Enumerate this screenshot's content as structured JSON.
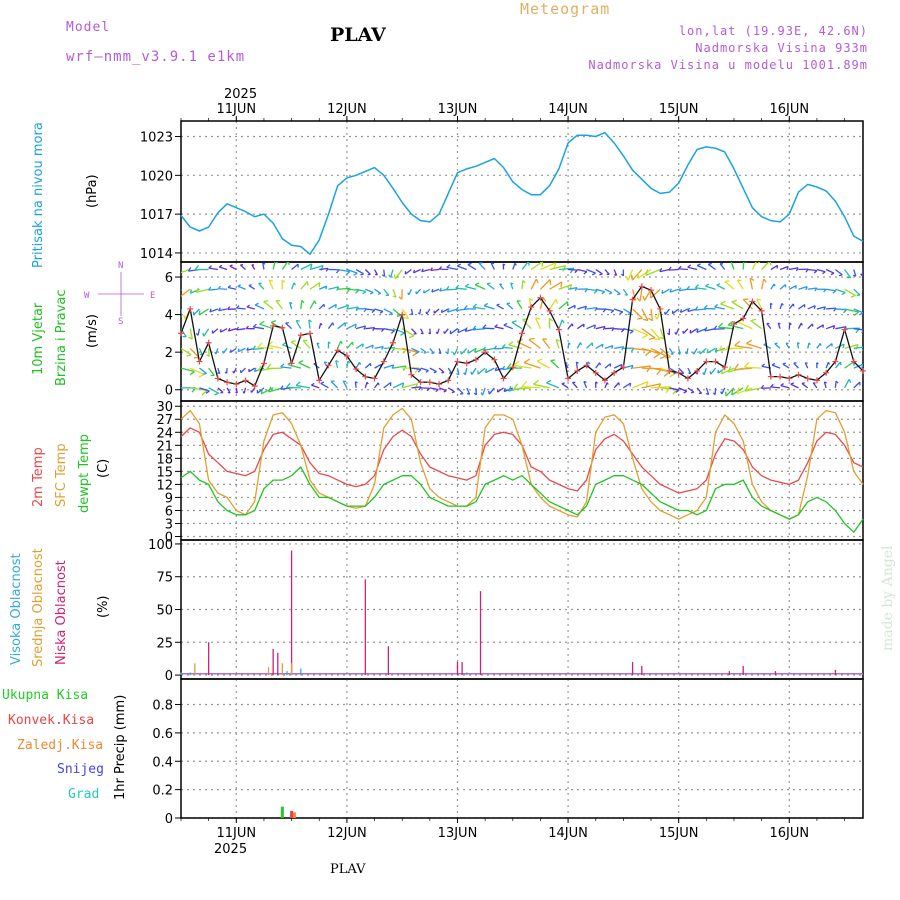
{
  "header": {
    "model_label": "Model",
    "model_name": "wrf—nmm_v3.9.1  e1km",
    "station": "PLAV",
    "product": "Meteogram",
    "lonlat": "lon,lat (19.93E, 42.6N)",
    "elevation": "Nadmorska Visina 933m",
    "model_elevation": "Nadmorska Visina u modelu 1001.89m",
    "footer_station": "PLAV",
    "watermark": "made by Angel"
  },
  "colors": {
    "pressure": "#1aa3e0",
    "wind_label": "#1fbf1f",
    "temp2m": "#e84a4a",
    "sfc": "#e0a030",
    "dewpt": "#22c422",
    "cloud_high": "#33aadd",
    "cloud_mid": "#e0a030",
    "cloud_low": "#cc2277",
    "rain_total": "#22cc22",
    "rain_conv": "#e84444",
    "rain_frozen": "#ee8833",
    "snow": "#4444dd",
    "hail": "#22ccbb"
  },
  "time_axis": {
    "year": "2025",
    "days": [
      "11JUN",
      "12JUN",
      "13JUN",
      "14JUN",
      "15JUN",
      "16JUN"
    ]
  },
  "panels": {
    "pressure": {
      "title": "Pritisak na nivou mora",
      "unit": "(hPa)",
      "ticks": [
        "1014",
        "1017",
        "1020",
        "1023"
      ]
    },
    "wind": {
      "title1": "10m Vjetar",
      "title2": "Brzina i Pravac",
      "unit": "(m/s)",
      "ticks": [
        "0",
        "2",
        "4",
        "6"
      ],
      "compass_n": "N",
      "compass_s": "S",
      "compass_e": "E",
      "compass_w": "W"
    },
    "temp": {
      "title_2m": "2m Temp",
      "title_sfc": "SFC Temp",
      "title_dew": "dewpt Temp",
      "unit": "(C)",
      "ticks": [
        "0",
        "3",
        "6",
        "9",
        "12",
        "15",
        "18",
        "21",
        "24",
        "27",
        "30"
      ]
    },
    "cloud": {
      "title_high": "Visoka Oblacnost",
      "title_mid": "Srednja Oblacnost",
      "title_low": "Niska Oblacnost",
      "unit": "(%)",
      "ticks": [
        "0",
        "25",
        "50",
        "75",
        "100"
      ]
    },
    "precip": {
      "title": "1hr Precip (mm)",
      "ticks": [
        "0",
        "0.2",
        "0.4",
        "0.6",
        "0.8"
      ],
      "legend": [
        "Ukupna Kisa",
        "Konvek.Kisa",
        "Zaledj.Kisa",
        "Snijeg",
        "Grad"
      ]
    }
  },
  "chart_data": [
    {
      "type": "line",
      "title": "Pritisak na nivou mora",
      "ylabel": "(hPa)",
      "ylim": [
        1013.3,
        1024.2
      ],
      "series": [
        {
          "name": "Pritisak na nivou mora",
          "x": [
            0,
            2,
            4,
            6,
            8,
            10,
            12,
            14,
            16,
            18,
            20,
            22,
            24,
            26,
            28,
            30,
            32,
            34,
            36,
            38,
            40,
            42,
            44,
            46,
            48,
            50,
            52,
            54,
            56,
            58,
            60,
            62,
            64,
            66,
            68,
            70,
            72,
            74,
            76,
            78,
            80,
            82,
            84,
            86,
            88,
            90,
            92,
            94,
            96,
            98,
            100,
            102,
            104,
            106,
            108,
            110,
            112,
            114,
            116,
            118,
            120,
            122,
            124,
            126,
            128,
            130,
            132,
            134,
            136,
            138,
            140,
            142,
            144,
            146,
            148
          ],
          "y": [
            1016.9,
            1016.0,
            1015.7,
            1016.0,
            1017.1,
            1017.8,
            1017.5,
            1017.2,
            1016.8,
            1017.0,
            1016.3,
            1015.1,
            1014.6,
            1014.5,
            1013.9,
            1015.0,
            1017.0,
            1019.2,
            1019.8,
            1020.0,
            1020.3,
            1020.6,
            1020.0,
            1019.0,
            1017.9,
            1017.0,
            1016.5,
            1016.4,
            1017.0,
            1018.6,
            1020.2,
            1020.5,
            1020.7,
            1021.0,
            1021.3,
            1020.6,
            1019.5,
            1018.9,
            1018.5,
            1018.5,
            1019.2,
            1020.5,
            1022.5,
            1023.1,
            1023.1,
            1023.0,
            1023.3,
            1022.5,
            1021.5,
            1020.4,
            1019.7,
            1019.0,
            1018.6,
            1018.7,
            1019.4,
            1020.8,
            1022.0,
            1022.2,
            1022.1,
            1021.8,
            1020.5,
            1019.0,
            1017.5,
            1016.8,
            1016.5,
            1016.4,
            1017.0,
            1018.7,
            1019.3,
            1019.1,
            1018.8,
            1018.0,
            1016.8,
            1015.3,
            1014.9
          ]
        }
      ]
    },
    {
      "type": "line",
      "title": "10m Vjetar Brzina i Pravac",
      "ylabel": "(m/s)",
      "ylim": [
        -0.6,
        6.8
      ],
      "series": [
        {
          "name": "10m Vjetar",
          "x": [
            0,
            2,
            4,
            6,
            8,
            10,
            12,
            14,
            16,
            18,
            20,
            22,
            24,
            26,
            28,
            30,
            32,
            34,
            36,
            38,
            40,
            42,
            44,
            46,
            48,
            50,
            52,
            54,
            56,
            58,
            60,
            62,
            64,
            66,
            68,
            70,
            72,
            74,
            76,
            78,
            80,
            82,
            84,
            86,
            88,
            90,
            92,
            94,
            96,
            98,
            100,
            102,
            104,
            106,
            108,
            110,
            112,
            114,
            116,
            118,
            120,
            122,
            124,
            126,
            128,
            130,
            132,
            134,
            136,
            138,
            140,
            142,
            144,
            146,
            148
          ],
          "y": [
            3.0,
            4.3,
            1.5,
            2.5,
            0.6,
            0.4,
            0.3,
            0.5,
            0.2,
            1.4,
            3.4,
            3.3,
            1.4,
            2.9,
            3.0,
            0.5,
            1.3,
            2.1,
            1.8,
            1.1,
            0.7,
            0.6,
            1.5,
            2.5,
            4.0,
            0.8,
            0.4,
            0.4,
            0.3,
            0.5,
            1.5,
            1.4,
            1.6,
            2.0,
            1.6,
            0.6,
            1.2,
            3.0,
            4.4,
            4.9,
            4.2,
            3.2,
            0.6,
            1.0,
            1.3,
            0.9,
            0.5,
            0.9,
            1.2,
            4.8,
            5.5,
            5.3,
            4.3,
            1.0,
            0.9,
            0.6,
            1.0,
            1.5,
            1.5,
            1.2,
            3.5,
            3.8,
            4.7,
            4.2,
            0.7,
            0.7,
            0.6,
            0.8,
            0.6,
            0.5,
            0.9,
            1.5,
            3.2,
            1.5,
            1.0
          ]
        }
      ]
    },
    {
      "type": "line",
      "title": "2m Temp / SFC Temp / dewpt Temp",
      "ylabel": "(C)",
      "ylim": [
        -0.8,
        31.2
      ],
      "x": [
        0,
        2,
        4,
        6,
        8,
        10,
        12,
        14,
        16,
        18,
        20,
        22,
        24,
        26,
        28,
        30,
        32,
        34,
        36,
        38,
        40,
        42,
        44,
        46,
        48,
        50,
        52,
        54,
        56,
        58,
        60,
        62,
        64,
        66,
        68,
        70,
        72,
        74,
        76,
        78,
        80,
        82,
        84,
        86,
        88,
        90,
        92,
        94,
        96,
        98,
        100,
        102,
        104,
        106,
        108,
        110,
        112,
        114,
        116,
        118,
        120,
        122,
        124,
        126,
        128,
        130,
        132,
        134,
        136,
        138,
        140,
        142,
        144,
        146,
        148
      ],
      "series": [
        {
          "name": "2m Temp",
          "values": [
            23,
            25,
            24,
            19,
            17,
            15,
            14.5,
            14,
            15,
            20,
            23.5,
            24,
            22.5,
            21,
            17,
            14.5,
            14,
            13,
            12,
            11.5,
            12,
            14,
            20,
            23,
            24.5,
            23,
            19,
            16,
            15,
            14,
            13.5,
            13,
            14,
            21,
            23.5,
            24,
            23.5,
            21,
            16,
            15,
            13,
            12,
            11,
            10.5,
            13,
            20,
            22.5,
            23.5,
            22,
            19,
            16,
            14,
            12,
            11,
            10,
            10.5,
            11,
            13,
            19,
            22.5,
            22,
            20,
            16,
            14,
            13,
            12.5,
            12,
            13,
            17,
            22,
            24,
            23.5,
            21,
            17,
            16
          ]
        },
        {
          "name": "SFC Temp",
          "values": [
            27,
            29,
            26,
            13,
            10,
            9,
            6,
            5,
            8,
            22,
            28,
            28.5,
            26,
            21,
            13,
            10,
            9,
            8,
            7,
            6.5,
            7,
            12,
            25,
            28,
            29.5,
            27,
            17,
            11,
            9,
            8,
            7,
            7,
            9,
            25,
            28,
            28,
            27,
            21,
            12,
            9,
            7,
            6,
            5,
            4.5,
            8,
            24,
            27.5,
            28,
            26,
            18,
            11,
            8,
            6,
            5,
            4,
            5,
            6,
            9,
            24,
            28,
            26,
            22,
            12,
            8,
            6,
            5,
            4,
            5,
            14,
            27,
            29,
            28.5,
            24,
            15,
            12
          ]
        },
        {
          "name": "dewpt Temp",
          "values": [
            13.5,
            15,
            13,
            12,
            8,
            6,
            5,
            5,
            6,
            11,
            13,
            13,
            14,
            16,
            12,
            9,
            9,
            8,
            7,
            7,
            7,
            9,
            12,
            13,
            14,
            14,
            12,
            9,
            8,
            7,
            7,
            7,
            8,
            12,
            13,
            14,
            13,
            14,
            12,
            10,
            8,
            7,
            6,
            5,
            7,
            12,
            13,
            14,
            14,
            13,
            12,
            10,
            8,
            7,
            6,
            6,
            5,
            6,
            11,
            12,
            12,
            13,
            9,
            7,
            6,
            5,
            4,
            5,
            8,
            9,
            8,
            6,
            3,
            1,
            4
          ]
        }
      ]
    },
    {
      "type": "bar",
      "title": "Visoka / Srednja / Niska Oblacnost",
      "ylabel": "(%)",
      "ylim": [
        -3,
        103
      ],
      "series": [
        {
          "name": "Niska Oblacnost",
          "x": [
            6,
            20,
            21,
            24,
            40,
            45,
            60,
            61,
            65,
            98,
            100,
            119,
            122,
            129,
            142
          ],
          "values": [
            25,
            20,
            17,
            95,
            73,
            22,
            10,
            10,
            64,
            10,
            7,
            3,
            7,
            3,
            4
          ]
        },
        {
          "name": "Srednja Oblacnost",
          "x": [
            3,
            22,
            19,
            24
          ],
          "values": [
            9,
            9,
            6,
            9
          ]
        },
        {
          "name": "Visoka Oblacnost",
          "x": [
            0,
            2,
            26,
            23,
            62
          ],
          "values": [
            2,
            2,
            5,
            3,
            2
          ]
        }
      ]
    },
    {
      "type": "bar",
      "title": "1hr Precip (mm)",
      "ylabel": "(mm)",
      "ylim": [
        0,
        0.98
      ],
      "series": [
        {
          "name": "Ukupna Kisa",
          "x": [
            22
          ],
          "values": [
            0.08
          ]
        },
        {
          "name": "Konvek.Kisa",
          "x": [
            24
          ],
          "values": [
            0.05
          ]
        },
        {
          "name": "Zaledj.Kisa",
          "x": [
            24.6
          ],
          "values": [
            0.04
          ]
        }
      ]
    }
  ]
}
